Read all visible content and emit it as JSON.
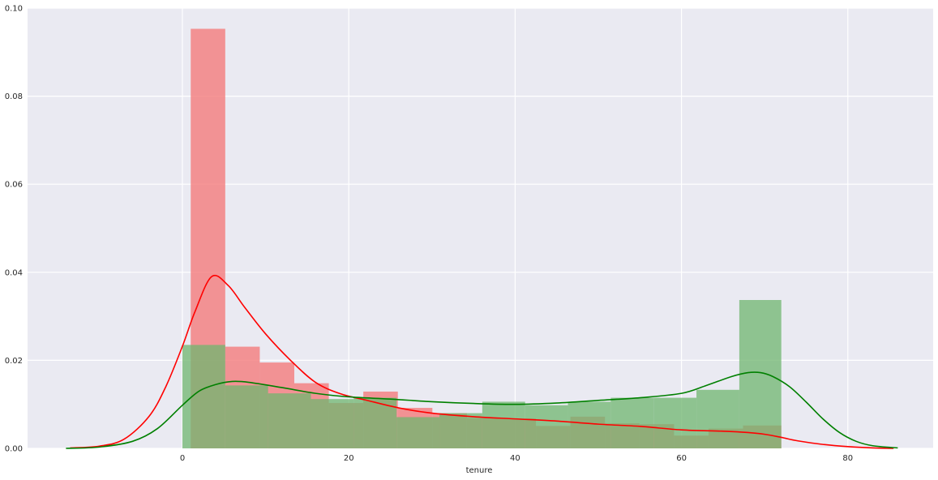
{
  "chart_data": {
    "type": "histogram",
    "title": "",
    "xlabel": "tenure",
    "ylabel": "",
    "xlim": [
      -15,
      90
    ],
    "ylim": [
      0,
      0.1
    ],
    "xticks": [
      0,
      20,
      40,
      60,
      80
    ],
    "yticks": [
      0.0,
      0.02,
      0.04,
      0.06,
      0.08,
      0.1
    ],
    "xtick_labels": [
      "0",
      "20",
      "40",
      "60",
      "80"
    ],
    "ytick_labels": [
      "0.00",
      "0.02",
      "0.04",
      "0.06",
      "0.08",
      "0.10"
    ],
    "grid": true,
    "background": "#EAEAF2",
    "series": [
      {
        "color": "#F47C7C",
        "kde_color": "#FF0000",
        "bins": [
          {
            "x0": 1.0,
            "x1": 5.15,
            "density": 0.0953
          },
          {
            "x0": 5.15,
            "x1": 9.3,
            "density": 0.0231
          },
          {
            "x0": 9.3,
            "x1": 13.45,
            "density": 0.0195
          },
          {
            "x0": 13.45,
            "x1": 17.6,
            "density": 0.0148
          },
          {
            "x0": 17.6,
            "x1": 21.75,
            "density": 0.0103
          },
          {
            "x0": 21.75,
            "x1": 25.9,
            "density": 0.0129
          },
          {
            "x0": 25.9,
            "x1": 30.05,
            "density": 0.0092
          },
          {
            "x0": 30.05,
            "x1": 34.2,
            "density": 0.008
          },
          {
            "x0": 34.2,
            "x1": 38.35,
            "density": 0.0069
          },
          {
            "x0": 38.35,
            "x1": 42.5,
            "density": 0.0068
          },
          {
            "x0": 42.5,
            "x1": 46.65,
            "density": 0.0051
          },
          {
            "x0": 46.65,
            "x1": 50.8,
            "density": 0.0072
          },
          {
            "x0": 50.8,
            "x1": 54.95,
            "density": 0.0057
          },
          {
            "x0": 54.95,
            "x1": 59.1,
            "density": 0.0055
          },
          {
            "x0": 59.1,
            "x1": 63.25,
            "density": 0.0029
          },
          {
            "x0": 63.25,
            "x1": 67.4,
            "density": 0.0045
          },
          {
            "x0": 67.4,
            "x1": 72.0,
            "density": 0.0052
          }
        ],
        "kde": [
          [
            -13.5,
            0.0001
          ],
          [
            -10,
            0.0005
          ],
          [
            -7,
            0.0021
          ],
          [
            -4,
            0.0073
          ],
          [
            -2,
            0.014
          ],
          [
            0,
            0.0232
          ],
          [
            1.5,
            0.031
          ],
          [
            3.5,
            0.039
          ],
          [
            5.5,
            0.037
          ],
          [
            7.5,
            0.032
          ],
          [
            10,
            0.026
          ],
          [
            13,
            0.02
          ],
          [
            16,
            0.015
          ],
          [
            19,
            0.0124
          ],
          [
            22,
            0.011
          ],
          [
            26,
            0.0092
          ],
          [
            30,
            0.008
          ],
          [
            35,
            0.0072
          ],
          [
            40,
            0.0067
          ],
          [
            45,
            0.0062
          ],
          [
            50,
            0.0055
          ],
          [
            55,
            0.005
          ],
          [
            60,
            0.0042
          ],
          [
            65,
            0.0039
          ],
          [
            68,
            0.0036
          ],
          [
            70,
            0.0032
          ],
          [
            72,
            0.0025
          ],
          [
            74,
            0.0017
          ],
          [
            77,
            0.0009
          ],
          [
            80,
            0.0004
          ],
          [
            83,
            0.0001
          ],
          [
            85.5,
            0.0
          ]
        ]
      },
      {
        "color": "#6FB56F",
        "kde_color": "#008000",
        "bins": [
          {
            "x0": 0.0,
            "x1": 5.15,
            "density": 0.0235
          },
          {
            "x0": 5.15,
            "x1": 10.3,
            "density": 0.0143
          },
          {
            "x0": 10.3,
            "x1": 15.45,
            "density": 0.0125
          },
          {
            "x0": 15.45,
            "x1": 20.6,
            "density": 0.0112
          },
          {
            "x0": 20.6,
            "x1": 25.75,
            "density": 0.0115
          },
          {
            "x0": 25.75,
            "x1": 30.9,
            "density": 0.0071
          },
          {
            "x0": 30.9,
            "x1": 36.05,
            "density": 0.008
          },
          {
            "x0": 36.05,
            "x1": 41.2,
            "density": 0.0106
          },
          {
            "x0": 41.2,
            "x1": 46.35,
            "density": 0.0098
          },
          {
            "x0": 46.35,
            "x1": 51.5,
            "density": 0.0106
          },
          {
            "x0": 51.5,
            "x1": 56.65,
            "density": 0.0115
          },
          {
            "x0": 56.65,
            "x1": 61.8,
            "density": 0.0115
          },
          {
            "x0": 61.8,
            "x1": 66.95,
            "density": 0.0133
          },
          {
            "x0": 66.95,
            "x1": 72.0,
            "density": 0.0337
          }
        ],
        "kde": [
          [
            -14,
            0.0
          ],
          [
            -10,
            0.0003
          ],
          [
            -6,
            0.0016
          ],
          [
            -3,
            0.0045
          ],
          [
            0,
            0.0098
          ],
          [
            2,
            0.013
          ],
          [
            4,
            0.0145
          ],
          [
            6,
            0.0152
          ],
          [
            8,
            0.015
          ],
          [
            12,
            0.0138
          ],
          [
            16,
            0.0125
          ],
          [
            20,
            0.0117
          ],
          [
            25,
            0.0112
          ],
          [
            30,
            0.0106
          ],
          [
            35,
            0.0102
          ],
          [
            40,
            0.01
          ],
          [
            45,
            0.0103
          ],
          [
            50,
            0.0109
          ],
          [
            55,
            0.0115
          ],
          [
            60,
            0.0125
          ],
          [
            63,
            0.0143
          ],
          [
            66,
            0.0163
          ],
          [
            68,
            0.0172
          ],
          [
            69.5,
            0.0172
          ],
          [
            71,
            0.0163
          ],
          [
            73,
            0.014
          ],
          [
            75,
            0.0105
          ],
          [
            77,
            0.0067
          ],
          [
            79,
            0.0036
          ],
          [
            81,
            0.0016
          ],
          [
            83,
            0.0006
          ],
          [
            86,
            0.0001
          ]
        ]
      }
    ]
  }
}
